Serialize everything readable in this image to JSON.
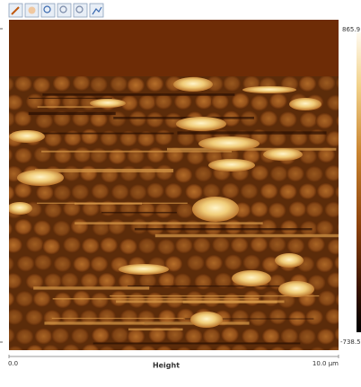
{
  "colorbar": {
    "max": "865.9",
    "min": "-738.5"
  },
  "x_axis": {
    "start": "0.0",
    "label": "Height",
    "end": "10.0 µm"
  }
}
